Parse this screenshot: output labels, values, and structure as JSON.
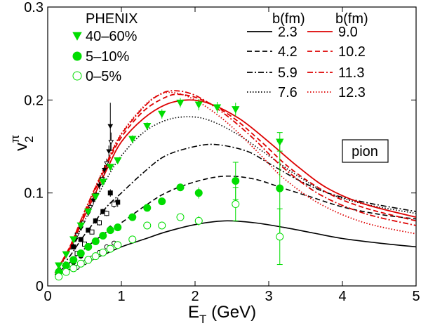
{
  "chart_data": {
    "type": "scatter",
    "title": "",
    "xlabel": {
      "main": "E",
      "sub": "T",
      "rest": " (GeV)"
    },
    "ylabel": {
      "main": "v",
      "sub": "2",
      "sup": "π"
    },
    "xlim": [
      0,
      5
    ],
    "ylim": [
      0,
      0.3
    ],
    "xticks": [
      0,
      1,
      2,
      3,
      4,
      5
    ],
    "xtick_labels": [
      "0",
      "1",
      "2",
      "3",
      "4",
      "5"
    ],
    "yticks": [
      0,
      0.1,
      0.2,
      0.3
    ],
    "ytick_labels": [
      "0",
      "0.1",
      "0.2",
      "0.3"
    ],
    "grid": false,
    "annotation": "pion",
    "legend": {
      "data_title": "PHENIX",
      "b_title_1": "b(fm)",
      "b_title_2": "b(fm)"
    },
    "data_series": [
      {
        "name": "40–60%",
        "marker": "triangle-down",
        "color": "#00dd00",
        "points": [
          [
            0.15,
            0.022
          ],
          [
            0.25,
            0.034
          ],
          [
            0.35,
            0.05
          ],
          [
            0.45,
            0.065
          ],
          [
            0.55,
            0.08
          ],
          [
            0.65,
            0.096
          ],
          [
            0.75,
            0.112
          ],
          [
            0.85,
            0.128
          ],
          [
            0.95,
            0.135
          ],
          [
            1.15,
            0.158
          ],
          [
            1.35,
            0.172
          ],
          [
            1.55,
            0.185
          ],
          [
            1.8,
            0.197
          ],
          [
            2.05,
            0.195
          ],
          [
            2.3,
            0.192
          ],
          [
            2.55,
            0.19
          ],
          [
            3.15,
            0.155
          ]
        ],
        "errors": [
          0.002,
          0.002,
          0.002,
          0.002,
          0.002,
          0.003,
          0.003,
          0.003,
          0.003,
          0.004,
          0.004,
          0.005,
          0.005,
          0.006,
          0.006,
          0.007,
          0.01
        ]
      },
      {
        "name": "5–10%",
        "marker": "circle-filled",
        "color": "#00dd00",
        "points": [
          [
            0.15,
            0.015
          ],
          [
            0.25,
            0.022
          ],
          [
            0.35,
            0.028
          ],
          [
            0.45,
            0.035
          ],
          [
            0.55,
            0.042
          ],
          [
            0.65,
            0.048
          ],
          [
            0.75,
            0.054
          ],
          [
            0.85,
            0.06
          ],
          [
            0.95,
            0.063
          ],
          [
            1.15,
            0.074
          ],
          [
            1.35,
            0.084
          ],
          [
            1.55,
            0.091
          ],
          [
            1.8,
            0.106
          ],
          [
            2.05,
            0.1
          ],
          [
            2.55,
            0.113
          ],
          [
            3.15,
            0.105
          ]
        ],
        "errors": [
          0.001,
          0.001,
          0.001,
          0.001,
          0.001,
          0.001,
          0.002,
          0.002,
          0.002,
          0.002,
          0.003,
          0.003,
          0.004,
          0.006,
          0.02,
          0.05
        ]
      },
      {
        "name": "0–5%",
        "marker": "circle-open",
        "color": "#00dd00",
        "points": [
          [
            0.15,
            0.01
          ],
          [
            0.25,
            0.015
          ],
          [
            0.35,
            0.019
          ],
          [
            0.45,
            0.024
          ],
          [
            0.55,
            0.028
          ],
          [
            0.65,
            0.032
          ],
          [
            0.75,
            0.036
          ],
          [
            0.85,
            0.04
          ],
          [
            0.95,
            0.044
          ],
          [
            1.15,
            0.05
          ],
          [
            1.35,
            0.065
          ],
          [
            1.55,
            0.065
          ],
          [
            1.8,
            0.074
          ],
          [
            2.05,
            0.07
          ],
          [
            2.55,
            0.088
          ],
          [
            3.15,
            0.053
          ]
        ],
        "errors": [
          0.001,
          0.001,
          0.001,
          0.001,
          0.001,
          0.001,
          0.002,
          0.002,
          0.002,
          0.002,
          0.003,
          0.003,
          0.004,
          0.005,
          0.018,
          0.03
        ]
      }
    ],
    "black_points": [
      {
        "marker": "triangle-filled-black",
        "points": [
          [
            0.38,
            0.05
          ],
          [
            0.45,
            0.062
          ],
          [
            0.55,
            0.078
          ],
          [
            0.62,
            0.092
          ],
          [
            0.7,
            0.108
          ],
          [
            0.77,
            0.125
          ],
          [
            0.83,
            0.145
          ],
          [
            0.85,
            0.172
          ]
        ],
        "errors": [
          0.002,
          0.002,
          0.003,
          0.003,
          0.004,
          0.005,
          0.006,
          0.025
        ]
      },
      {
        "marker": "triangle-open-black",
        "points": [
          [
            0.4,
            0.055
          ],
          [
            0.48,
            0.068
          ],
          [
            0.58,
            0.085
          ],
          [
            0.66,
            0.098
          ],
          [
            0.74,
            0.115
          ],
          [
            0.8,
            0.132
          ],
          [
            0.86,
            0.155
          ]
        ],
        "errors": [
          0.002,
          0.002,
          0.003,
          0.003,
          0.004,
          0.005,
          0.01
        ]
      },
      {
        "marker": "square-filled-black",
        "points": [
          [
            0.35,
            0.042
          ],
          [
            0.45,
            0.05
          ],
          [
            0.55,
            0.06
          ],
          [
            0.65,
            0.07
          ],
          [
            0.75,
            0.08
          ],
          [
            0.85,
            0.1
          ],
          [
            0.95,
            0.09
          ]
        ],
        "errors": [
          0.002,
          0.002,
          0.002,
          0.003,
          0.003,
          0.004,
          0.005
        ]
      },
      {
        "marker": "square-open-black",
        "points": [
          [
            0.4,
            0.035
          ],
          [
            0.5,
            0.045
          ],
          [
            0.6,
            0.058
          ],
          [
            0.7,
            0.068
          ],
          [
            0.8,
            0.078
          ],
          [
            0.9,
            0.088
          ]
        ],
        "errors": [
          0.002,
          0.002,
          0.002,
          0.003,
          0.003,
          0.004
        ]
      },
      {
        "marker": "circle-filled-black",
        "points": [
          [
            0.35,
            0.025
          ],
          [
            0.45,
            0.032
          ],
          [
            0.55,
            0.042
          ],
          [
            0.65,
            0.048
          ],
          [
            0.75,
            0.055
          ],
          [
            0.85,
            0.062
          ]
        ],
        "errors": [
          0.001,
          0.001,
          0.002,
          0.002,
          0.002,
          0.003
        ]
      },
      {
        "marker": "circle-open-black",
        "points": [
          [
            0.4,
            0.02
          ],
          [
            0.5,
            0.025
          ],
          [
            0.6,
            0.03
          ],
          [
            0.7,
            0.036
          ],
          [
            0.8,
            0.042
          ],
          [
            0.9,
            0.046
          ]
        ],
        "errors": [
          0.001,
          0.001,
          0.001,
          0.002,
          0.002,
          0.002
        ]
      }
    ],
    "curves": [
      {
        "name": "2.3",
        "color": "#000000",
        "dash": "solid",
        "points": [
          [
            0.1,
            0.01
          ],
          [
            0.3,
            0.018
          ],
          [
            0.5,
            0.025
          ],
          [
            0.8,
            0.035
          ],
          [
            1.0,
            0.042
          ],
          [
            1.3,
            0.05
          ],
          [
            1.6,
            0.058
          ],
          [
            2.0,
            0.066
          ],
          [
            2.4,
            0.07
          ],
          [
            2.8,
            0.068
          ],
          [
            3.2,
            0.063
          ],
          [
            3.6,
            0.057
          ],
          [
            4.0,
            0.051
          ],
          [
            4.5,
            0.046
          ],
          [
            5.0,
            0.042
          ]
        ]
      },
      {
        "name": "4.2",
        "color": "#000000",
        "dash": "dashed",
        "points": [
          [
            0.1,
            0.012
          ],
          [
            0.3,
            0.025
          ],
          [
            0.5,
            0.04
          ],
          [
            0.8,
            0.058
          ],
          [
            1.0,
            0.068
          ],
          [
            1.3,
            0.085
          ],
          [
            1.6,
            0.1
          ],
          [
            2.0,
            0.112
          ],
          [
            2.4,
            0.118
          ],
          [
            2.8,
            0.115
          ],
          [
            3.2,
            0.105
          ],
          [
            3.6,
            0.095
          ],
          [
            4.0,
            0.085
          ],
          [
            4.5,
            0.077
          ],
          [
            5.0,
            0.072
          ]
        ]
      },
      {
        "name": "5.9",
        "color": "#000000",
        "dash": "dashdot",
        "points": [
          [
            0.1,
            0.012
          ],
          [
            0.3,
            0.032
          ],
          [
            0.5,
            0.055
          ],
          [
            0.8,
            0.085
          ],
          [
            1.0,
            0.1
          ],
          [
            1.3,
            0.122
          ],
          [
            1.6,
            0.14
          ],
          [
            2.0,
            0.15
          ],
          [
            2.3,
            0.152
          ],
          [
            2.7,
            0.145
          ],
          [
            3.0,
            0.132
          ],
          [
            3.4,
            0.114
          ],
          [
            3.8,
            0.1
          ],
          [
            4.3,
            0.09
          ],
          [
            5.0,
            0.08
          ]
        ]
      },
      {
        "name": "7.6",
        "color": "#000000",
        "dash": "dotted",
        "points": [
          [
            0.1,
            0.014
          ],
          [
            0.3,
            0.038
          ],
          [
            0.5,
            0.07
          ],
          [
            0.8,
            0.115
          ],
          [
            1.0,
            0.14
          ],
          [
            1.3,
            0.165
          ],
          [
            1.6,
            0.178
          ],
          [
            1.9,
            0.182
          ],
          [
            2.2,
            0.178
          ],
          [
            2.6,
            0.162
          ],
          [
            3.0,
            0.14
          ],
          [
            3.4,
            0.118
          ],
          [
            3.8,
            0.1
          ],
          [
            4.3,
            0.088
          ],
          [
            5.0,
            0.078
          ]
        ]
      },
      {
        "name": "9.0",
        "color": "#dd0000",
        "dash": "solid",
        "points": [
          [
            0.1,
            0.014
          ],
          [
            0.3,
            0.04
          ],
          [
            0.5,
            0.075
          ],
          [
            0.8,
            0.125
          ],
          [
            1.0,
            0.155
          ],
          [
            1.3,
            0.18
          ],
          [
            1.6,
            0.195
          ],
          [
            1.9,
            0.2
          ],
          [
            2.2,
            0.196
          ],
          [
            2.6,
            0.18
          ],
          [
            3.0,
            0.155
          ],
          [
            3.4,
            0.128
          ],
          [
            3.8,
            0.105
          ],
          [
            4.3,
            0.088
          ],
          [
            5.0,
            0.074
          ]
        ]
      },
      {
        "name": "10.2",
        "color": "#dd0000",
        "dash": "dashed",
        "points": [
          [
            0.1,
            0.014
          ],
          [
            0.3,
            0.042
          ],
          [
            0.5,
            0.078
          ],
          [
            0.8,
            0.13
          ],
          [
            1.0,
            0.16
          ],
          [
            1.3,
            0.188
          ],
          [
            1.6,
            0.203
          ],
          [
            1.8,
            0.206
          ],
          [
            2.1,
            0.2
          ],
          [
            2.5,
            0.182
          ],
          [
            2.9,
            0.155
          ],
          [
            3.3,
            0.126
          ],
          [
            3.8,
            0.1
          ],
          [
            4.3,
            0.084
          ],
          [
            5.0,
            0.07
          ]
        ]
      },
      {
        "name": "11.3",
        "color": "#dd0000",
        "dash": "dashdot",
        "points": [
          [
            0.1,
            0.014
          ],
          [
            0.3,
            0.042
          ],
          [
            0.5,
            0.08
          ],
          [
            0.8,
            0.132
          ],
          [
            1.0,
            0.163
          ],
          [
            1.3,
            0.192
          ],
          [
            1.5,
            0.205
          ],
          [
            1.7,
            0.21
          ],
          [
            2.0,
            0.205
          ],
          [
            2.4,
            0.185
          ],
          [
            2.8,
            0.158
          ],
          [
            3.2,
            0.127
          ],
          [
            3.7,
            0.098
          ],
          [
            4.3,
            0.078
          ],
          [
            5.0,
            0.065
          ]
        ]
      },
      {
        "name": "12.3",
        "color": "#dd0000",
        "dash": "dotted",
        "points": [
          [
            0.1,
            0.014
          ],
          [
            0.3,
            0.042
          ],
          [
            0.5,
            0.08
          ],
          [
            0.8,
            0.133
          ],
          [
            1.0,
            0.164
          ],
          [
            1.3,
            0.193
          ],
          [
            1.5,
            0.205
          ],
          [
            1.7,
            0.208
          ],
          [
            2.0,
            0.2
          ],
          [
            2.4,
            0.178
          ],
          [
            2.8,
            0.148
          ],
          [
            3.2,
            0.116
          ],
          [
            3.7,
            0.088
          ],
          [
            4.3,
            0.068
          ],
          [
            5.0,
            0.056
          ]
        ]
      }
    ]
  }
}
